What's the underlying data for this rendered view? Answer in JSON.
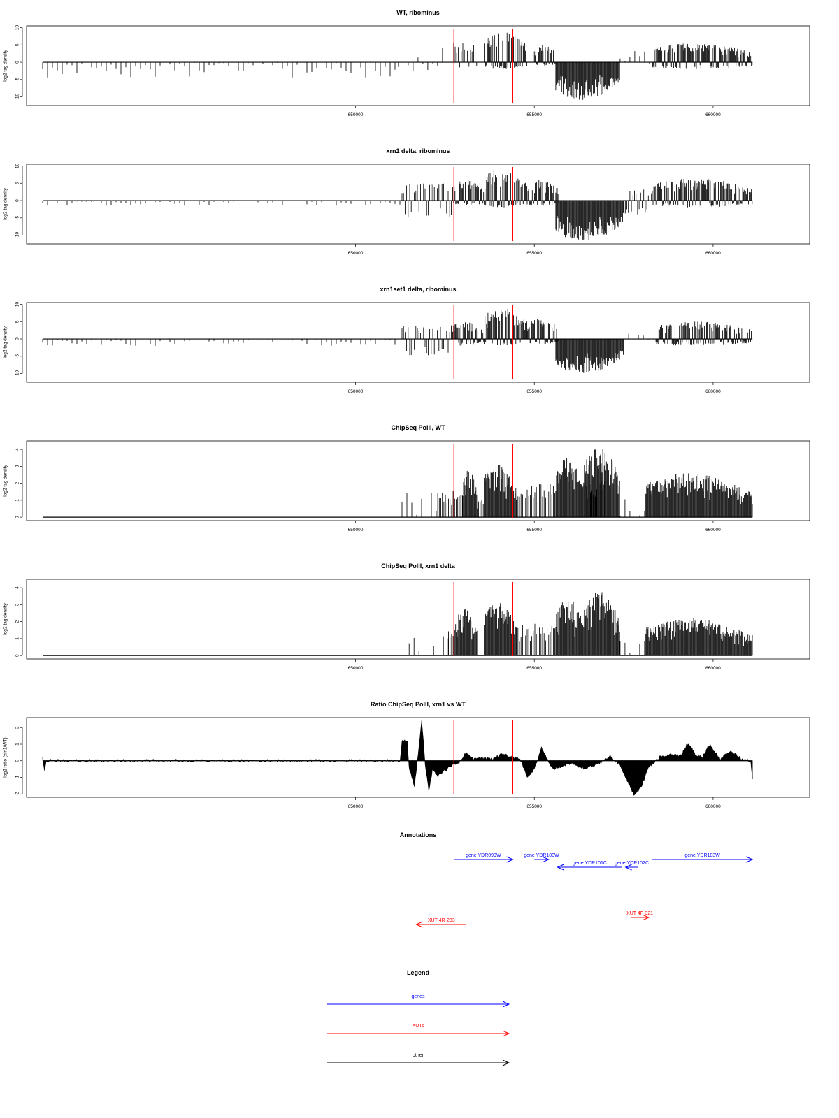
{
  "colors": {
    "signal": "#000000",
    "marker": "#ff0000",
    "gene": "#0000ff",
    "xut": "#ff0000",
    "other": "#000000",
    "frame": "#000000"
  },
  "markers": [
    652750,
    654400
  ],
  "chart_data": [
    {
      "type": "bar",
      "title": "WT, ribominus",
      "ylabel": "log2 tag density",
      "xlim": [
        640800,
        662700
      ],
      "ylim": [
        -12.5,
        10.5
      ],
      "yticks": [
        -10,
        -5,
        0,
        5,
        10
      ],
      "xticks": [
        650000,
        655000,
        660000
      ],
      "tick_labels": [
        "650000",
        "655000",
        "660000"
      ],
      "segments": [
        {
          "start": 641250,
          "end": 651200,
          "top": 0,
          "bottom": -4.5,
          "density": "sparse"
        },
        {
          "start": 651200,
          "end": 652700,
          "top": 4.5,
          "bottom": -3,
          "density": "sparse"
        },
        {
          "start": 652700,
          "end": 653400,
          "top": 6,
          "bottom": -1.5,
          "density": "medium"
        },
        {
          "start": 653600,
          "end": 654800,
          "top": 9,
          "bottom": -2,
          "density": "dense"
        },
        {
          "start": 655000,
          "end": 655600,
          "top": 5,
          "bottom": -1,
          "density": "dense"
        },
        {
          "start": 655600,
          "end": 657400,
          "top": 0,
          "bottom": -11,
          "density": "dense"
        },
        {
          "start": 657400,
          "end": 658300,
          "top": 3.5,
          "bottom": -2,
          "density": "sparse"
        },
        {
          "start": 658300,
          "end": 661100,
          "top": 5.5,
          "bottom": -2,
          "density": "dense"
        }
      ]
    },
    {
      "type": "bar",
      "title": "xrn1 delta, ribominus",
      "ylabel": "log2 tag density",
      "xlim": [
        640800,
        662700
      ],
      "ylim": [
        -12.5,
        10.5
      ],
      "yticks": [
        -10,
        -5,
        0,
        5,
        10
      ],
      "xticks": [
        650000,
        655000,
        660000
      ],
      "tick_labels": [
        "650000",
        "655000",
        "660000"
      ],
      "segments": [
        {
          "start": 641250,
          "end": 651300,
          "top": 0,
          "bottom": -1.5,
          "density": "sparse"
        },
        {
          "start": 651300,
          "end": 652700,
          "top": 5,
          "bottom": -5,
          "density": "medium"
        },
        {
          "start": 652700,
          "end": 653600,
          "top": 6,
          "bottom": -1.5,
          "density": "dense"
        },
        {
          "start": 653600,
          "end": 654800,
          "top": 9.5,
          "bottom": -2,
          "density": "dense"
        },
        {
          "start": 654800,
          "end": 655700,
          "top": 6,
          "bottom": -1.5,
          "density": "dense"
        },
        {
          "start": 655600,
          "end": 657500,
          "top": 0,
          "bottom": -12,
          "density": "dense"
        },
        {
          "start": 657500,
          "end": 658300,
          "top": 3.5,
          "bottom": -4,
          "density": "medium"
        },
        {
          "start": 658300,
          "end": 661100,
          "top": 6.5,
          "bottom": -2,
          "density": "dense"
        }
      ]
    },
    {
      "type": "bar",
      "title": "xrn1set1 delta, ribominus",
      "ylabel": "log2 tag density",
      "xlim": [
        640800,
        662700
      ],
      "ylim": [
        -12.5,
        10.5
      ],
      "yticks": [
        -10,
        -5,
        0,
        5,
        10
      ],
      "xticks": [
        650000,
        655000,
        660000
      ],
      "tick_labels": [
        "650000",
        "655000",
        "660000"
      ],
      "segments": [
        {
          "start": 641250,
          "end": 651300,
          "top": 0,
          "bottom": -2,
          "density": "sparse"
        },
        {
          "start": 651300,
          "end": 652700,
          "top": 4,
          "bottom": -5,
          "density": "medium"
        },
        {
          "start": 652700,
          "end": 653600,
          "top": 5,
          "bottom": -2,
          "density": "dense"
        },
        {
          "start": 653600,
          "end": 654800,
          "top": 9,
          "bottom": -2,
          "density": "dense"
        },
        {
          "start": 654800,
          "end": 655700,
          "top": 6,
          "bottom": -1.5,
          "density": "dense"
        },
        {
          "start": 655600,
          "end": 657500,
          "top": 0,
          "bottom": -10,
          "density": "dense"
        },
        {
          "start": 657500,
          "end": 658400,
          "top": 3,
          "bottom": -2,
          "density": "sparse"
        },
        {
          "start": 658400,
          "end": 661100,
          "top": 5,
          "bottom": -2,
          "density": "dense"
        }
      ]
    },
    {
      "type": "bar",
      "title": "ChipSeq PolII, WT",
      "ylabel": "log2 tag density",
      "xlim": [
        640800,
        662700
      ],
      "ylim": [
        -0.2,
        4.5
      ],
      "yticks": [
        0,
        1,
        2,
        3,
        4
      ],
      "xticks": [
        650000,
        655000,
        660000
      ],
      "tick_labels": [
        "650000",
        "655000",
        "660000"
      ],
      "segments": [
        {
          "start": 651300,
          "end": 652300,
          "top": 1.58,
          "bottom": 0,
          "density": "sparse"
        },
        {
          "start": 652300,
          "end": 653000,
          "top": 1.58,
          "bottom": 0,
          "density": "medium"
        },
        {
          "start": 653000,
          "end": 653400,
          "top": 2.8,
          "bottom": 0,
          "density": "dense"
        },
        {
          "start": 653400,
          "end": 653600,
          "top": 1,
          "bottom": 0,
          "density": "medium"
        },
        {
          "start": 653600,
          "end": 654500,
          "top": 3.2,
          "bottom": 0,
          "density": "dense"
        },
        {
          "start": 654500,
          "end": 655600,
          "top": 2,
          "bottom": 0,
          "density": "medium"
        },
        {
          "start": 655600,
          "end": 656400,
          "top": 3.6,
          "bottom": 0,
          "density": "dense"
        },
        {
          "start": 656400,
          "end": 657000,
          "top": 2.3,
          "bottom": 0,
          "density": "medium"
        },
        {
          "start": 656400,
          "end": 657400,
          "top": 4.2,
          "bottom": 0,
          "density": "dense"
        },
        {
          "start": 657400,
          "end": 658100,
          "top": 1.58,
          "bottom": 0,
          "density": "sparse"
        },
        {
          "start": 658100,
          "end": 661100,
          "top": 2.6,
          "bottom": 0,
          "density": "dense"
        }
      ]
    },
    {
      "type": "bar",
      "title": "ChipSeq PolII, xrn1 delta",
      "ylabel": "log2 tag density",
      "xlim": [
        640800,
        662700
      ],
      "ylim": [
        -0.2,
        4.5
      ],
      "yticks": [
        0,
        1,
        2,
        3,
        4
      ],
      "xticks": [
        650000,
        655000,
        660000
      ],
      "tick_labels": [
        "650000",
        "655000",
        "660000"
      ],
      "segments": [
        {
          "start": 651500,
          "end": 652600,
          "top": 1.2,
          "bottom": 0,
          "density": "sparse"
        },
        {
          "start": 652600,
          "end": 652800,
          "top": 1.58,
          "bottom": 0,
          "density": "medium"
        },
        {
          "start": 652800,
          "end": 653400,
          "top": 2.8,
          "bottom": 0,
          "density": "dense"
        },
        {
          "start": 653400,
          "end": 653600,
          "top": 0.6,
          "bottom": 0,
          "density": "sparse"
        },
        {
          "start": 653600,
          "end": 654500,
          "top": 3.2,
          "bottom": 0,
          "density": "dense"
        },
        {
          "start": 654500,
          "end": 655600,
          "top": 2,
          "bottom": 0,
          "density": "medium"
        },
        {
          "start": 655600,
          "end": 656400,
          "top": 3.4,
          "bottom": 0,
          "density": "dense"
        },
        {
          "start": 656400,
          "end": 657400,
          "top": 3.8,
          "bottom": 0,
          "density": "dense"
        },
        {
          "start": 657400,
          "end": 658100,
          "top": 1.2,
          "bottom": 0,
          "density": "sparse"
        },
        {
          "start": 658100,
          "end": 661100,
          "top": 2.2,
          "bottom": 0,
          "density": "dense"
        }
      ]
    },
    {
      "type": "area",
      "title": "Ratio ChipSeq PolII, xrn1 vs WT",
      "ylabel": "log2 ratio (xrn1/WT)",
      "xlim": [
        640800,
        662700
      ],
      "ylim": [
        -2.2,
        2.6
      ],
      "yticks": [
        -2,
        -1,
        0,
        1,
        2
      ],
      "xticks": [
        650000,
        655000,
        660000
      ],
      "tick_labels": [
        "650000",
        "655000",
        "660000"
      ],
      "x": [
        641250,
        641300,
        641350,
        641400,
        651250,
        651300,
        651450,
        651500,
        651650,
        651750,
        651850,
        651950,
        652050,
        652150,
        652300,
        652500,
        652700,
        652900,
        653100,
        653300,
        653500,
        653800,
        654100,
        654400,
        654600,
        654800,
        655000,
        655200,
        655500,
        655800,
        656100,
        656400,
        656800,
        657100,
        657400,
        657600,
        657800,
        658000,
        658200,
        658500,
        658800,
        659100,
        659300,
        659500,
        659700,
        659900,
        660200,
        660500,
        660800,
        661050,
        661100
      ],
      "y": [
        0.25,
        -0.6,
        0,
        0,
        0,
        1.2,
        1.2,
        -0.5,
        -1.5,
        0.3,
        2.5,
        -0.2,
        -1.8,
        -0.6,
        -0.9,
        -0.6,
        -0.3,
        -0.1,
        0.5,
        0.1,
        0.2,
        0.1,
        0.4,
        0.2,
        0.1,
        -1,
        -0.5,
        0.8,
        -0.5,
        -0.3,
        -0.2,
        -0.5,
        -0.2,
        0.3,
        -0.3,
        -1.2,
        -2.1,
        -1.5,
        -0.4,
        0.2,
        0.4,
        0.3,
        1.1,
        0.4,
        0.2,
        1,
        0.1,
        0.6,
        0.1,
        0,
        -1.1
      ]
    }
  ],
  "annotations": {
    "title": "Annotations",
    "genes": [
      {
        "label": "gene YDR099W",
        "start": 652750,
        "end": 654400,
        "strand": "+"
      },
      {
        "label": "gene YDR100W",
        "start": 655000,
        "end": 655400,
        "strand": "+"
      },
      {
        "label": "gene YDR101C",
        "start": 655650,
        "end": 657450,
        "strand": "-"
      },
      {
        "label": "gene YDR102C",
        "start": 657550,
        "end": 657900,
        "strand": "-"
      },
      {
        "label": "gene YDR103W",
        "start": 658300,
        "end": 661100,
        "strand": "+"
      }
    ],
    "xuts": [
      {
        "label": "XUT 4R-283",
        "start": 651700,
        "end": 653100,
        "strand": "-"
      },
      {
        "label": "XUT 4F-321",
        "start": 657700,
        "end": 658200,
        "strand": "+"
      }
    ]
  },
  "legend": {
    "title": "Legend",
    "entries": [
      {
        "label": "genes",
        "kind": "gene"
      },
      {
        "label": "XUTs",
        "kind": "xut"
      },
      {
        "label": "other",
        "kind": "other"
      }
    ]
  }
}
